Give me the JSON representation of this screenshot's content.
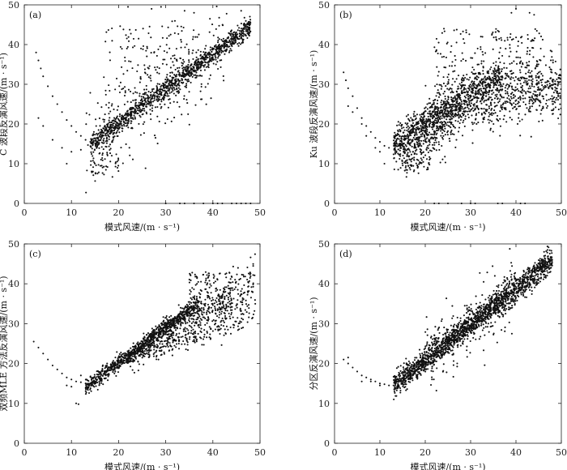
{
  "chart_data": [
    {
      "type": "scatter",
      "panel_label": "(a)",
      "xlabel": "模式风速/(m · s⁻¹)",
      "ylabel": "C 波段反演风速/(m · s⁻¹)",
      "xlim": [
        0,
        50
      ],
      "ylim": [
        0,
        50
      ],
      "xticks": [
        0,
        10,
        20,
        30,
        40,
        50
      ],
      "yticks": [
        0,
        10,
        20,
        30,
        40,
        50
      ],
      "tick_labels": {
        "x": [
          "0",
          "10",
          "20",
          "30",
          "40",
          "50"
        ],
        "y": [
          "0",
          "10",
          "20",
          "30",
          "40",
          "50"
        ]
      },
      "pattern": "linear_tight",
      "low_speed_branch": [
        [
          2.5,
          38
        ],
        [
          3,
          36
        ],
        [
          3.5,
          34
        ],
        [
          4,
          32
        ],
        [
          5,
          29.5
        ],
        [
          6,
          27
        ],
        [
          7,
          25
        ],
        [
          8,
          23
        ],
        [
          9,
          21
        ],
        [
          10,
          19.5
        ],
        [
          11,
          18
        ],
        [
          12,
          17
        ],
        [
          13,
          16
        ],
        [
          14,
          15.5
        ]
      ],
      "extra_points": [
        [
          3,
          21.5
        ],
        [
          4,
          19.5
        ],
        [
          6,
          16
        ],
        [
          8,
          14
        ],
        [
          9,
          10
        ],
        [
          10,
          13
        ],
        [
          12,
          13.5
        ],
        [
          22,
          49.5
        ],
        [
          27,
          49
        ],
        [
          29,
          49.5
        ],
        [
          34,
          48.5
        ],
        [
          36,
          48
        ],
        [
          46,
          48.5
        ],
        [
          30,
          0
        ],
        [
          33,
          0
        ],
        [
          34,
          0
        ],
        [
          36,
          0
        ],
        [
          38,
          0
        ],
        [
          40,
          0
        ],
        [
          41,
          0
        ],
        [
          42,
          0
        ],
        [
          44,
          0
        ],
        [
          45,
          0
        ],
        [
          46,
          0
        ],
        [
          47,
          0
        ],
        [
          48,
          0
        ]
      ]
    },
    {
      "type": "scatter",
      "panel_label": "(b)",
      "xlabel": "模式风速/(m · s⁻¹)",
      "ylabel": "Ku 波段反演风速/(m · s⁻¹)",
      "xlim": [
        0,
        50
      ],
      "ylim": [
        0,
        50
      ],
      "xticks": [
        0,
        10,
        20,
        30,
        40,
        50
      ],
      "yticks": [
        0,
        10,
        20,
        30,
        40,
        50
      ],
      "tick_labels": {
        "x": [
          "0",
          "10",
          "20",
          "30",
          "40",
          "50"
        ],
        "y": [
          "0",
          "10",
          "20",
          "30",
          "40",
          "50"
        ]
      },
      "pattern": "saturating_spread",
      "low_speed_branch": [
        [
          2,
          33
        ],
        [
          2.5,
          31
        ],
        [
          3,
          29
        ],
        [
          4,
          27
        ],
        [
          5,
          24
        ],
        [
          6,
          21.5
        ],
        [
          7,
          19.5
        ],
        [
          8,
          18
        ],
        [
          9,
          16.5
        ],
        [
          10,
          15.5
        ],
        [
          11,
          14.5
        ],
        [
          12,
          14
        ]
      ],
      "extra_points": [
        [
          3,
          24.5
        ],
        [
          4,
          23
        ],
        [
          6,
          20
        ],
        [
          7,
          17
        ],
        [
          9,
          14
        ],
        [
          10,
          13
        ],
        [
          11,
          10
        ],
        [
          39,
          48
        ],
        [
          40,
          49
        ],
        [
          43,
          48
        ],
        [
          44,
          47.5
        ],
        [
          22,
          0
        ],
        [
          23,
          0
        ],
        [
          25,
          0
        ],
        [
          28,
          0
        ],
        [
          30,
          0
        ],
        [
          31,
          0
        ],
        [
          36,
          0
        ],
        [
          37,
          0
        ],
        [
          41,
          0
        ],
        [
          42,
          0
        ]
      ]
    },
    {
      "type": "scatter",
      "panel_label": "(c)",
      "xlabel": "模式风速/(m · s⁻¹)",
      "ylabel": "双频MLE 方法反演风速/(m · s⁻¹)",
      "xlim": [
        0,
        50
      ],
      "ylim": [
        0,
        50
      ],
      "xticks": [
        0,
        10,
        20,
        30,
        40,
        50
      ],
      "yticks": [
        0,
        10,
        20,
        30,
        40,
        50
      ],
      "tick_labels": {
        "x": [
          "0",
          "10",
          "20",
          "30",
          "40",
          "50"
        ],
        "y": [
          "0",
          "10",
          "20",
          "30",
          "40",
          "50"
        ]
      },
      "pattern": "linear_with_lower_spread",
      "low_speed_branch": [
        [
          2,
          25.5
        ],
        [
          3,
          24
        ],
        [
          4,
          22.5
        ],
        [
          5,
          21
        ],
        [
          6,
          19.5
        ],
        [
          7,
          18.5
        ],
        [
          8,
          17.5
        ],
        [
          9,
          16.5
        ],
        [
          10,
          16
        ],
        [
          11,
          15.5
        ],
        [
          12,
          15.3
        ],
        [
          13,
          15
        ]
      ],
      "extra_points": [
        [
          11,
          10
        ],
        [
          11.5,
          9.8
        ],
        [
          12,
          17
        ],
        [
          9,
          14.5
        ],
        [
          10,
          14.2
        ]
      ]
    },
    {
      "type": "scatter",
      "panel_label": "(d)",
      "xlabel": "模式风速/(m · s⁻¹)",
      "ylabel": "分区反演风速/(m · s⁻¹)",
      "xlim": [
        0,
        50
      ],
      "ylim": [
        0,
        50
      ],
      "xticks": [
        0,
        10,
        20,
        30,
        40,
        50
      ],
      "yticks": [
        0,
        10,
        20,
        30,
        40,
        50
      ],
      "tick_labels": {
        "x": [
          "0",
          "10",
          "20",
          "30",
          "40",
          "50"
        ],
        "y": [
          "0",
          "10",
          "20",
          "30",
          "40",
          "50"
        ]
      },
      "pattern": "linear_tight_all",
      "low_speed_branch": [
        [
          2,
          21
        ],
        [
          3,
          20
        ],
        [
          4,
          19
        ],
        [
          5,
          18
        ],
        [
          6,
          17
        ],
        [
          7,
          16.5
        ],
        [
          8,
          16
        ],
        [
          9,
          15.5
        ],
        [
          10,
          15
        ],
        [
          11,
          14.8
        ],
        [
          12,
          14.5
        ],
        [
          13,
          14.5
        ]
      ],
      "extra_points": [
        [
          3,
          21.5
        ],
        [
          6,
          15.5
        ],
        [
          8,
          15.5
        ],
        [
          10,
          14.5
        ]
      ]
    }
  ]
}
